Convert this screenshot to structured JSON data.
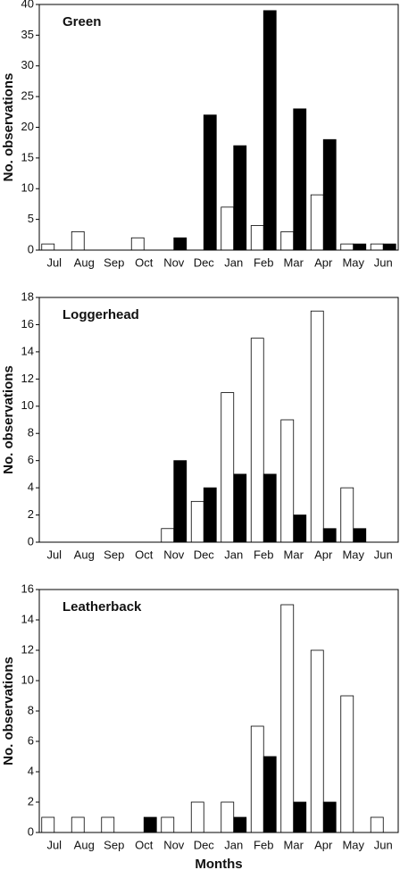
{
  "chart_data": [
    {
      "type": "bar",
      "title": "Green",
      "y_label": "No. observations",
      "categories": [
        "Jul",
        "Aug",
        "Sep",
        "Oct",
        "Nov",
        "Dec",
        "Jan",
        "Feb",
        "Mar",
        "Apr",
        "May",
        "Jun"
      ],
      "series": [
        {
          "color": "#ffffff",
          "values": [
            1,
            3,
            0,
            2,
            0,
            0,
            7,
            4,
            3,
            9,
            1,
            1
          ]
        },
        {
          "color": "#000000",
          "values": [
            0,
            0,
            0,
            0,
            2,
            22,
            17,
            39,
            23,
            18,
            1,
            1
          ]
        }
      ],
      "ylim": [
        0,
        40
      ],
      "yticks": [
        0,
        5,
        10,
        15,
        20,
        25,
        30,
        35,
        40
      ]
    },
    {
      "type": "bar",
      "title": "Loggerhead",
      "y_label": "No. observations",
      "categories": [
        "Jul",
        "Aug",
        "Sep",
        "Oct",
        "Nov",
        "Dec",
        "Jan",
        "Feb",
        "Mar",
        "Apr",
        "May",
        "Jun"
      ],
      "series": [
        {
          "color": "#ffffff",
          "values": [
            0,
            0,
            0,
            0,
            1,
            3,
            11,
            15,
            9,
            17,
            4,
            0
          ]
        },
        {
          "color": "#000000",
          "values": [
            0,
            0,
            0,
            0,
            6,
            4,
            5,
            5,
            2,
            1,
            1,
            0
          ]
        }
      ],
      "ylim": [
        0,
        18
      ],
      "yticks": [
        0,
        2,
        4,
        6,
        8,
        10,
        12,
        14,
        16,
        18
      ]
    },
    {
      "type": "bar",
      "title": "Leatherback",
      "y_label": "No. observations",
      "x_label": "Months",
      "categories": [
        "Jul",
        "Aug",
        "Sep",
        "Oct",
        "Nov",
        "Dec",
        "Jan",
        "Feb",
        "Mar",
        "Apr",
        "May",
        "Jun"
      ],
      "series": [
        {
          "color": "#ffffff",
          "values": [
            1,
            1,
            1,
            0,
            1,
            2,
            2,
            7,
            15,
            12,
            9,
            1
          ]
        },
        {
          "color": "#000000",
          "values": [
            0,
            0,
            0,
            1,
            0,
            0,
            1,
            5,
            2,
            2,
            0,
            0
          ]
        }
      ],
      "ylim": [
        0,
        16
      ],
      "yticks": [
        0,
        2,
        4,
        6,
        8,
        10,
        12,
        14,
        16
      ]
    }
  ]
}
